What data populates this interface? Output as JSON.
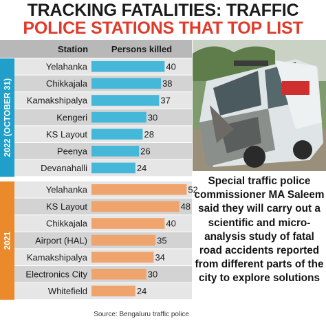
{
  "header": {
    "title_line1": "TRACKING FATALITIES: TRAFFIC",
    "title_line2": "POLICE STATIONS THAT TOP LIST"
  },
  "colors": {
    "title_accent": "#e03a2b",
    "band_2022": "#1f9fc9",
    "bar_2022": "#45b7d8",
    "band_2021": "#ea8a2a",
    "bar_2021": "#efa36d",
    "header_bg": "#b8b8b8",
    "row_light": "#e6e6e6",
    "row_dark": "#d3d3d3"
  },
  "chart_data": {
    "type": "bar",
    "orientation": "horizontal",
    "column_headers": {
      "station": "Station",
      "value": "Persons killed"
    },
    "xlim": [
      0,
      55
    ],
    "groups": [
      {
        "label": "2022 (OCTOBER 31)",
        "categories": [
          "Yelahanka",
          "Chikkajala",
          "Kamakshipalya",
          "Kengeri",
          "KS Layout",
          "Peenya",
          "Devanahalli"
        ],
        "values": [
          40,
          38,
          37,
          30,
          28,
          26,
          24
        ]
      },
      {
        "label": "2021",
        "categories": [
          "Yelahanka",
          "KS Layout",
          "Chikkajala",
          "Airport (HAL)",
          "Kamakshipalya",
          "Electronics City",
          "Whitefield"
        ],
        "values": [
          52,
          48,
          40,
          35,
          34,
          30,
          24
        ]
      }
    ],
    "source": "Source: Bengaluru traffic police"
  },
  "photo": {
    "description_icon": "damaged-ambulance-photo"
  },
  "caption": "Special traffic police commissioner MA Saleem said they will carry out a scientific and micro-analysis study of fatal road accidents reported from different parts of the city to explore solutions"
}
